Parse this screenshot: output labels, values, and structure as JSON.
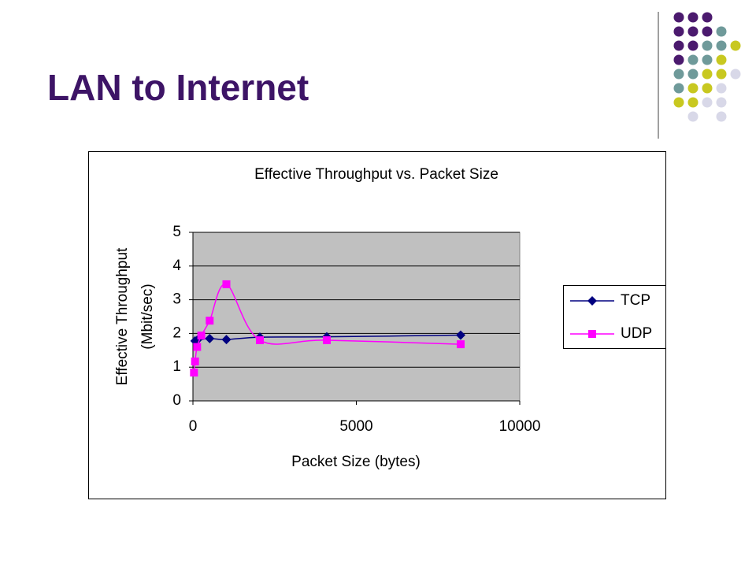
{
  "slide": {
    "title": "LAN to Internet"
  },
  "chart_data": {
    "type": "line",
    "smooth": true,
    "title": "Effective Throughput vs. Packet Size",
    "x_label": "Packet Size (bytes)",
    "y_label": [
      "Effective Throughput",
      "(Mbit/sec)"
    ],
    "xlim": [
      0,
      10000
    ],
    "xticks": [
      0,
      5000,
      10000
    ],
    "ylim": [
      0,
      5
    ],
    "yticks": [
      0,
      1,
      2,
      3,
      4,
      5
    ],
    "grid": true,
    "legend": "right",
    "plot_background": "#c0c0c0",
    "series": [
      {
        "name": "TCP",
        "color": "#000080",
        "marker": "diamond",
        "x": [
          64,
          128,
          512,
          1024,
          2048,
          4096,
          8192
        ],
        "values": [
          1.78,
          1.8,
          1.85,
          1.82,
          1.89,
          1.9,
          1.95
        ]
      },
      {
        "name": "UDP",
        "color": "#ff00ff",
        "marker": "square",
        "x": [
          32,
          64,
          128,
          256,
          512,
          1024,
          2048,
          4096,
          8192
        ],
        "values": [
          0.84,
          1.17,
          1.6,
          1.94,
          2.38,
          3.46,
          1.8,
          1.8,
          1.68
        ]
      }
    ]
  }
}
